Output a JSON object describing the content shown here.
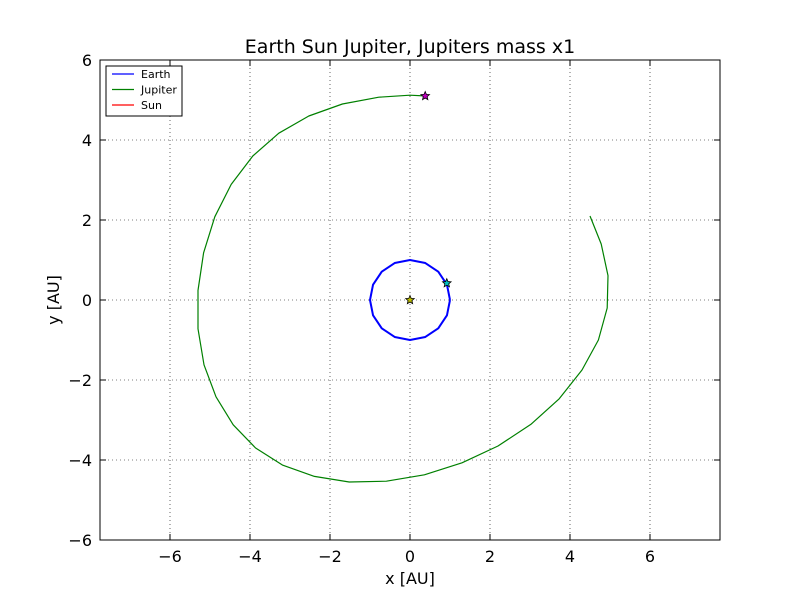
{
  "chart_data": {
    "type": "line",
    "title": "Earth Sun Jupiter, Jupiters mass x1",
    "xlabel": "x [AU]",
    "ylabel": "y [AU]",
    "xlim": [
      -7.75,
      7.75
    ],
    "ylim": [
      -6,
      6
    ],
    "xticks": [
      -6,
      -4,
      -2,
      0,
      2,
      4,
      6
    ],
    "yticks": [
      -6,
      -4,
      -2,
      0,
      2,
      4,
      6
    ],
    "xtick_labels": [
      "−6",
      "−4",
      "−2",
      "0",
      "2",
      "4",
      "6"
    ],
    "ytick_labels": [
      "−6",
      "−4",
      "−2",
      "0",
      "2",
      "4",
      "6"
    ],
    "grid": true,
    "legend": {
      "placement": "top-left"
    },
    "series": [
      {
        "name": "Earth",
        "color": "#0000ff",
        "x": [
          1.0,
          0.924,
          0.707,
          0.383,
          0.0,
          -0.383,
          -0.707,
          -0.924,
          -1.0,
          -0.924,
          -0.707,
          -0.383,
          0.0,
          0.383,
          0.707,
          0.924,
          1.0
        ],
        "y": [
          0.0,
          0.383,
          0.707,
          0.924,
          1.0,
          0.924,
          0.707,
          0.383,
          0.0,
          -0.383,
          -0.707,
          -0.924,
          -1.0,
          -0.924,
          -0.707,
          -0.383,
          0.0
        ],
        "end_marker": {
          "x": 0.92,
          "y": 0.42,
          "color": "#00bfbf"
        }
      },
      {
        "name": "Jupiter",
        "color": "#008000",
        "x": [
          4.5,
          4.78,
          4.95,
          4.93,
          4.71,
          4.3,
          3.73,
          3.02,
          2.2,
          1.3,
          0.36,
          -0.59,
          -1.52,
          -2.39,
          -3.18,
          -3.86,
          -4.42,
          -4.85,
          -5.15,
          -5.3,
          -5.3,
          -5.16,
          -4.88,
          -4.47,
          -3.93,
          -3.28,
          -2.53,
          -1.69,
          -0.78,
          0.0,
          0.4
        ],
        "y": [
          2.1,
          1.4,
          0.61,
          -0.2,
          -1.0,
          -1.75,
          -2.47,
          -3.11,
          -3.65,
          -4.07,
          -4.37,
          -4.53,
          -4.55,
          -4.41,
          -4.13,
          -3.7,
          -3.12,
          -2.42,
          -1.62,
          -0.72,
          0.24,
          1.18,
          2.08,
          2.89,
          3.6,
          4.17,
          4.6,
          4.9,
          5.07,
          5.12,
          5.1
        ],
        "end_marker": {
          "x": 0.38,
          "y": 5.1,
          "color": "#bf00bf"
        }
      },
      {
        "name": "Sun",
        "color": "#ff0000",
        "x": [
          0.0,
          0.0
        ],
        "y": [
          0.0,
          0.0
        ],
        "end_marker": {
          "x": 0.0,
          "y": 0.0,
          "color": "#bfbf00"
        }
      }
    ]
  }
}
